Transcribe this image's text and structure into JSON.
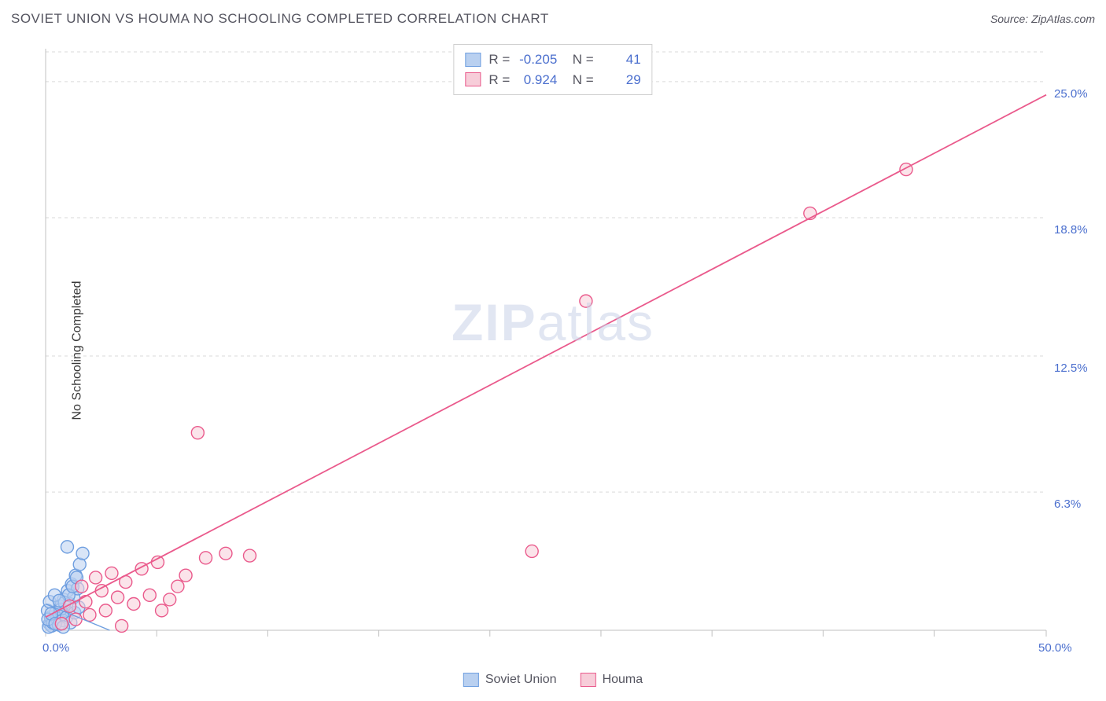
{
  "header": {
    "title": "SOVIET UNION VS HOUMA NO SCHOOLING COMPLETED CORRELATION CHART",
    "source": "Source: ZipAtlas.com"
  },
  "watermark": {
    "bold": "ZIP",
    "light": "atlas"
  },
  "yaxis_label": "No Schooling Completed",
  "chart": {
    "type": "scatter",
    "background_color": "#ffffff",
    "xlim": [
      0,
      50
    ],
    "ylim": [
      0,
      26.5
    ],
    "x_ticks": [
      0,
      5.55,
      11.1,
      16.65,
      22.2,
      27.75,
      33.3,
      38.85,
      44.4,
      50
    ],
    "x_tick_labels": {
      "0": "0.0%",
      "50": "50.0%"
    },
    "y_grid": [
      6.3,
      12.5,
      18.8,
      25.0
    ],
    "y_tick_labels": [
      "6.3%",
      "12.5%",
      "18.8%",
      "25.0%"
    ],
    "grid_color": "#d9d9d9",
    "grid_dash": "4 4",
    "axis_line_color": "#c0c0c0",
    "marker_radius": 8,
    "marker_stroke_width": 1.4,
    "series": [
      {
        "name": "Soviet Union",
        "fill": "#b9d0f0",
        "stroke": "#6f9fe0",
        "fill_opacity": 0.55,
        "trend_line": {
          "x1": 0,
          "y1": 1.2,
          "x2": 3.2,
          "y2": 0.0,
          "color": "#6f9fe0",
          "width": 1.4
        },
        "points": [
          [
            0.2,
            0.3
          ],
          [
            0.3,
            0.2
          ],
          [
            0.25,
            0.6
          ],
          [
            0.4,
            0.4
          ],
          [
            0.5,
            0.8
          ],
          [
            0.6,
            0.5
          ],
          [
            0.7,
            1.1
          ],
          [
            0.8,
            0.7
          ],
          [
            0.9,
            1.4
          ],
          [
            1.0,
            0.9
          ],
          [
            1.1,
            1.8
          ],
          [
            1.2,
            1.2
          ],
          [
            1.3,
            2.1
          ],
          [
            1.4,
            1.5
          ],
          [
            1.5,
            2.5
          ],
          [
            1.6,
            1.9
          ],
          [
            0.15,
            0.15
          ],
          [
            0.35,
            0.35
          ],
          [
            0.55,
            0.55
          ],
          [
            0.75,
            0.95
          ],
          [
            0.95,
            1.25
          ],
          [
            1.15,
            1.6
          ],
          [
            1.35,
            2.0
          ],
          [
            1.55,
            2.4
          ],
          [
            1.7,
            3.0
          ],
          [
            1.85,
            3.5
          ],
          [
            0.1,
            0.9
          ],
          [
            0.2,
            1.3
          ],
          [
            0.45,
            1.6
          ],
          [
            0.65,
            0.25
          ],
          [
            0.85,
            0.45
          ],
          [
            1.05,
            0.6
          ],
          [
            1.25,
            0.35
          ],
          [
            1.45,
            0.8
          ],
          [
            1.65,
            1.05
          ],
          [
            0.12,
            0.5
          ],
          [
            0.28,
            0.75
          ],
          [
            0.48,
            0.3
          ],
          [
            0.68,
            1.35
          ],
          [
            0.88,
            0.15
          ],
          [
            1.08,
            3.8
          ]
        ]
      },
      {
        "name": "Houma",
        "fill": "#f7cdd9",
        "stroke": "#ea5a8c",
        "fill_opacity": 0.55,
        "trend_line": {
          "x1": 0,
          "y1": 0.6,
          "x2": 50,
          "y2": 24.4,
          "color": "#ea5a8c",
          "width": 1.8
        },
        "points": [
          [
            0.8,
            0.3
          ],
          [
            1.2,
            1.1
          ],
          [
            1.5,
            0.5
          ],
          [
            1.8,
            2.0
          ],
          [
            2.0,
            1.3
          ],
          [
            2.2,
            0.7
          ],
          [
            2.5,
            2.4
          ],
          [
            2.8,
            1.8
          ],
          [
            3.0,
            0.9
          ],
          [
            3.3,
            2.6
          ],
          [
            3.6,
            1.5
          ],
          [
            3.8,
            0.2
          ],
          [
            4.0,
            2.2
          ],
          [
            4.4,
            1.2
          ],
          [
            4.8,
            2.8
          ],
          [
            5.2,
            1.6
          ],
          [
            5.6,
            3.1
          ],
          [
            5.8,
            0.9
          ],
          [
            6.2,
            1.4
          ],
          [
            6.6,
            2.0
          ],
          [
            7.0,
            2.5
          ],
          [
            8.0,
            3.3
          ],
          [
            9.0,
            3.5
          ],
          [
            10.2,
            3.4
          ],
          [
            7.6,
            9.0
          ],
          [
            24.3,
            3.6
          ],
          [
            27.0,
            15.0
          ],
          [
            38.2,
            19.0
          ],
          [
            43.0,
            21.0
          ]
        ]
      }
    ]
  },
  "stats": [
    {
      "r": "-0.205",
      "n": "41",
      "swatch_fill": "#b9d0f0",
      "swatch_stroke": "#6f9fe0"
    },
    {
      "r": "0.924",
      "n": "29",
      "swatch_fill": "#f7cdd9",
      "swatch_stroke": "#ea5a8c"
    }
  ],
  "bottom_legend": [
    {
      "label": "Soviet Union",
      "fill": "#b9d0f0",
      "stroke": "#6f9fe0"
    },
    {
      "label": "Houma",
      "fill": "#f7cdd9",
      "stroke": "#ea5a8c"
    }
  ]
}
